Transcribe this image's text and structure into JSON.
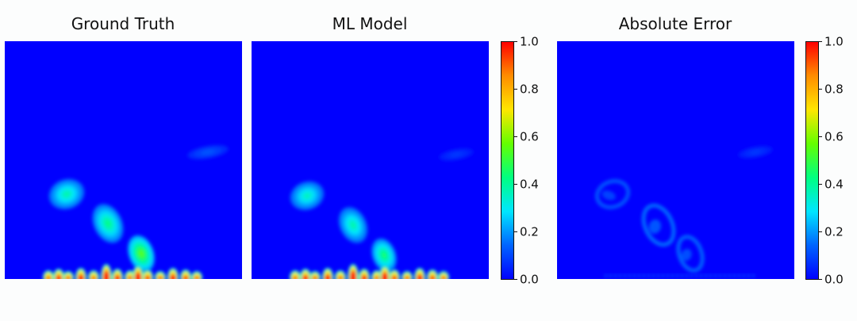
{
  "panels": [
    {
      "title": "Ground Truth"
    },
    {
      "title": "ML Model"
    },
    {
      "title": "Absolute Error"
    }
  ],
  "colormap": [
    "#0000ff",
    "#0064ff",
    "#00e6ff",
    "#00ff80",
    "#64ff00",
    "#ffe600",
    "#ff8c00",
    "#ff0000"
  ],
  "chart_data": [
    {
      "type": "heatmap",
      "title": "Ground Truth",
      "xlabel": "",
      "ylabel": "",
      "clim": [
        0,
        1
      ],
      "background_value": 0.0,
      "features": [
        {
          "name": "blob-1",
          "peak": 0.38
        },
        {
          "name": "blob-2",
          "peak": 0.42
        },
        {
          "name": "plume",
          "peak": 0.55
        },
        {
          "name": "faint-wisp-right",
          "peak": 0.12
        },
        {
          "name": "bottom-band",
          "peak": 1.0
        }
      ]
    },
    {
      "type": "heatmap",
      "title": "ML Model",
      "xlabel": "",
      "ylabel": "",
      "clim": [
        0,
        1
      ],
      "background_value": 0.0,
      "features": [
        {
          "name": "blob-1",
          "peak": 0.36
        },
        {
          "name": "blob-2",
          "peak": 0.38
        },
        {
          "name": "plume",
          "peak": 0.45
        },
        {
          "name": "faint-wisp-right",
          "peak": 0.08
        },
        {
          "name": "bottom-band",
          "peak": 1.0
        }
      ]
    },
    {
      "type": "heatmap",
      "title": "Absolute Error",
      "xlabel": "",
      "ylabel": "",
      "clim": [
        0,
        1
      ],
      "background_value": 0.0,
      "features": [
        {
          "name": "blob-1-edge",
          "peak": 0.12
        },
        {
          "name": "blob-2-edge",
          "peak": 0.15
        },
        {
          "name": "plume-edge",
          "peak": 0.14
        },
        {
          "name": "faint-wisp-right",
          "peak": 0.08
        },
        {
          "name": "bottom-speckle",
          "peak": 0.1
        }
      ]
    }
  ],
  "colorbar": {
    "range": [
      0.0,
      1.0
    ],
    "ticks": [
      "0.0",
      "0.2",
      "0.4",
      "0.6",
      "0.8",
      "1.0"
    ]
  }
}
